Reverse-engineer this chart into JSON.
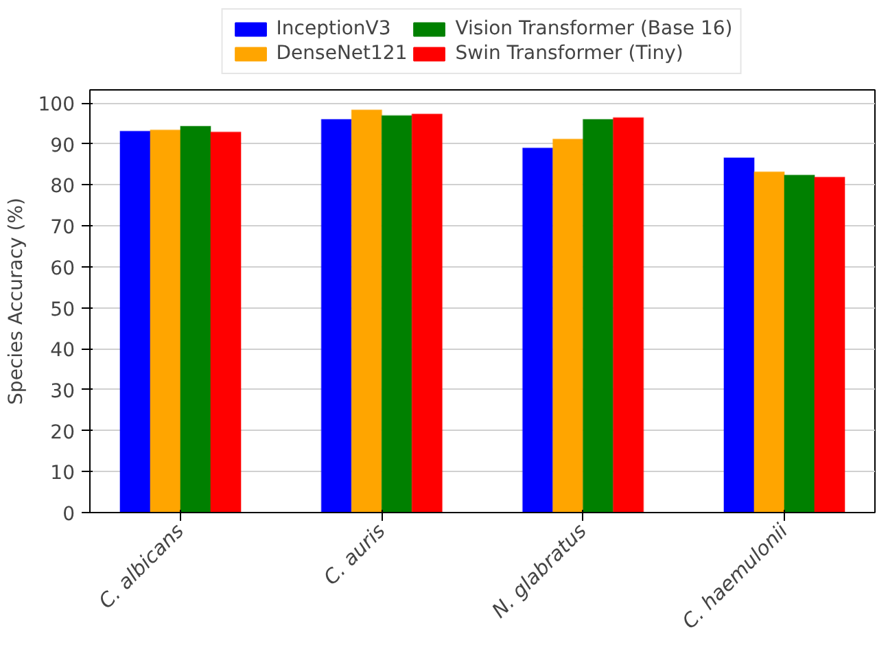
{
  "chart_data": {
    "type": "bar",
    "ylabel": "Species Accuracy (%)",
    "categories": [
      "C. albicans",
      "C. auris",
      "N. glabratus",
      "C. haemulonii"
    ],
    "series": [
      {
        "name": "InceptionV3",
        "color": "#0000ff",
        "values": [
          93.1,
          96.0,
          89.0,
          86.6
        ]
      },
      {
        "name": "DenseNet121",
        "color": "#ffa500",
        "values": [
          93.4,
          98.3,
          91.2,
          83.2
        ]
      },
      {
        "name": "Vision Transformer (Base 16)",
        "color": "#008000",
        "values": [
          94.3,
          96.9,
          96.0,
          82.4
        ]
      },
      {
        "name": "Swin Transformer (Tiny)",
        "color": "#ff0000",
        "values": [
          92.9,
          97.3,
          96.4,
          81.9
        ]
      }
    ],
    "ylim": [
      0,
      103.2
    ],
    "yticks": [
      0,
      10,
      20,
      30,
      40,
      50,
      60,
      70,
      80,
      90,
      100
    ],
    "grid": "y",
    "legend": "top"
  }
}
